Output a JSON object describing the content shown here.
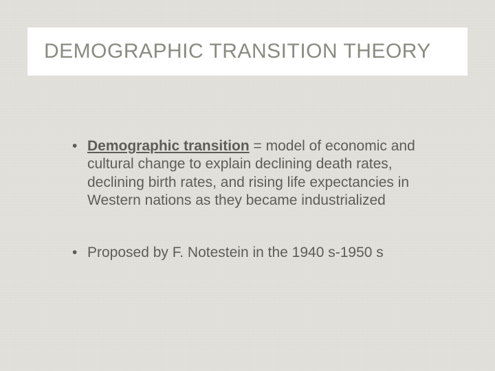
{
  "title": "DEMOGRAPHIC TRANSITION THEORY",
  "bullets": [
    {
      "term": "Demographic transition",
      "definition": " = model of economic and cultural change to explain declining death rates, declining birth rates, and rising life expectancies in Western nations as they became industrialized"
    },
    {
      "text": "Proposed by F. Notestein in the 1940 s-1950 s"
    }
  ],
  "styling": {
    "background_color": "#e2e0db",
    "title_box_bg": "#ffffff",
    "title_color": "#8a8a82",
    "title_fontsize": 30,
    "body_color": "#5d5d58",
    "body_fontsize": 21
  }
}
